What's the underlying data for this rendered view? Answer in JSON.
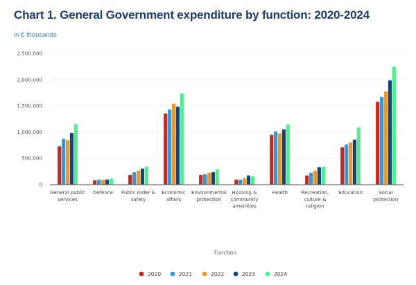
{
  "header": {
    "title": "Chart 1. General Government expenditure by function: 2020-2024",
    "subtitle": "in € thousands"
  },
  "chart_data": {
    "type": "bar",
    "title": "Chart 1. General Government expenditure by function: 2020-2024",
    "subtitle": "in € thousands",
    "xlabel": "Function",
    "ylabel": "",
    "ylim": [
      0,
      2500000
    ],
    "yticks": [
      0,
      500000,
      1000000,
      1500000,
      2000000,
      2500000
    ],
    "ytick_labels": [
      "0",
      "500,000",
      "1,000,000",
      "1,500,000",
      "2,000,000",
      "2,500,000"
    ],
    "grid": true,
    "legend_position": "bottom",
    "categories": [
      [
        "General public",
        "services"
      ],
      [
        "Defence"
      ],
      [
        "Public order &",
        "safety"
      ],
      [
        "Economic",
        "affairs"
      ],
      [
        "Environmental",
        "protection"
      ],
      [
        "Housing &",
        "community",
        "amenities"
      ],
      [
        "Health"
      ],
      [
        "Recreation,",
        "culture &",
        "religion"
      ],
      [
        "Education"
      ],
      [
        "Social",
        "protection"
      ]
    ],
    "series": [
      {
        "name": "2020",
        "color": "#c8281e",
        "values": [
          728000,
          80000,
          184000,
          1355000,
          184000,
          92000,
          947000,
          171000,
          711000,
          1579000
        ]
      },
      {
        "name": "2021",
        "color": "#2e9be0",
        "values": [
          874000,
          92000,
          237000,
          1434000,
          197000,
          92000,
          1013000,
          224000,
          763000,
          1671000
        ]
      },
      {
        "name": "2022",
        "color": "#f5961e",
        "values": [
          848000,
          90000,
          263000,
          1540000,
          224000,
          118000,
          974000,
          263000,
          803000,
          1776000
        ]
      },
      {
        "name": "2023",
        "color": "#16457e",
        "values": [
          980000,
          95000,
          303000,
          1487000,
          237000,
          171000,
          1053000,
          329000,
          855000,
          1987000
        ]
      },
      {
        "name": "2024",
        "color": "#4cf08c",
        "values": [
          1152000,
          112000,
          342000,
          1737000,
          289000,
          158000,
          1145000,
          342000,
          1092000,
          2250000
        ]
      }
    ]
  }
}
